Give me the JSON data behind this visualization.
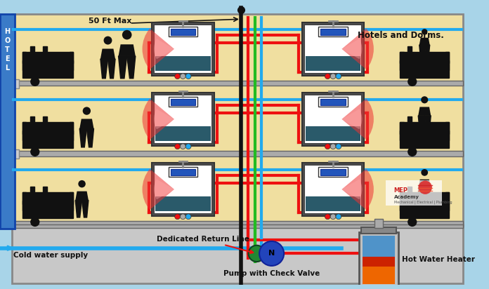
{
  "bg_color": "#a8d4e8",
  "floor_color": "#f0dfa0",
  "floor_border": "#888888",
  "basement_color": "#c8c8c8",
  "hotel_sign_color": "#3a7bc8",
  "hot_color": "#ee1111",
  "cold_color": "#22aaee",
  "return_color": "#22bb22",
  "black_color": "#111111",
  "label_50ft": "50 Ft Max",
  "label_hotels": "Hotels and Dorms.",
  "label_return": "Dedicated Return Line",
  "label_pump": "Pump with Check Valve",
  "label_heater": "Hot Water Heater",
  "label_cold": "Cold water supply",
  "figw": 6.96,
  "figh": 4.12,
  "dpi": 100
}
